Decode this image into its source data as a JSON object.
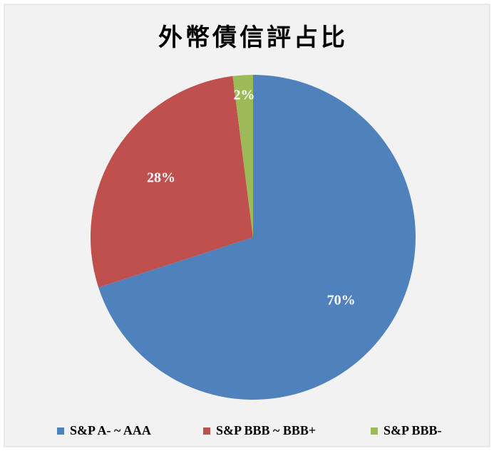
{
  "chart_data": {
    "type": "pie",
    "title": "外幣債信評占比",
    "categories": [
      "S&P A- ~ AAA",
      "S&P BBB ~ BBB+",
      "S&P BBB-"
    ],
    "values": [
      70,
      28,
      2
    ],
    "value_labels": [
      "70%",
      "28%",
      "2%"
    ],
    "colors": [
      "#4f81bd",
      "#c0504d",
      "#9bbb59"
    ],
    "legend": "bottom"
  }
}
